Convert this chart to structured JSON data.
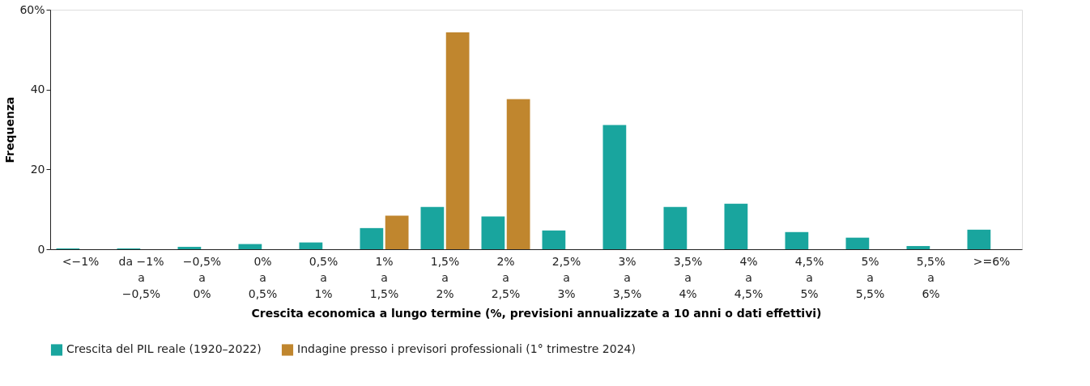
{
  "chart_data": {
    "type": "bar",
    "xlabel": "Crescita economica a lungo termine (%, previsioni annualizzate a 10 anni o dati effettivi)",
    "ylabel": "Frequenza",
    "categories": [
      "<−1%",
      "da −1%\na\n−0,5%",
      "−0,5%\na\n0%",
      "0%\na\n0,5%",
      "0,5%\na\n1%",
      "1%\na\n1,5%",
      "1,5%\na\n2%",
      "2%\na\n2,5%",
      "2,5%\na\n3%",
      "3%\na\n3,5%",
      "3,5%\na\n4%",
      "4%\na\n4,5%",
      "4,5%\na\n5%",
      "5%\na\n5,5%",
      "5,5%\na\n6%",
      ">=6%"
    ],
    "series": [
      {
        "name": "Crescita del PIL reale (1920–2022)",
        "color": "#19a59e",
        "values": [
          0.2,
          0.2,
          0.6,
          1.3,
          1.7,
          5.3,
          10.6,
          8.2,
          4.7,
          31.1,
          10.6,
          11.4,
          4.3,
          2.9,
          0.8,
          4.9
        ]
      },
      {
        "name": "Indagine presso i previsori professionali (1° trimestre 2024)",
        "color": "#c0862e",
        "values": [
          null,
          null,
          null,
          null,
          null,
          8.4,
          54.3,
          37.6,
          null,
          null,
          null,
          null,
          null,
          null,
          null,
          null
        ]
      }
    ],
    "ylim": [
      0,
      60
    ],
    "yticks": [
      0,
      20,
      40,
      {
        "value": 60,
        "label": "60%"
      }
    ],
    "grid": false,
    "legend": "bottom left"
  }
}
